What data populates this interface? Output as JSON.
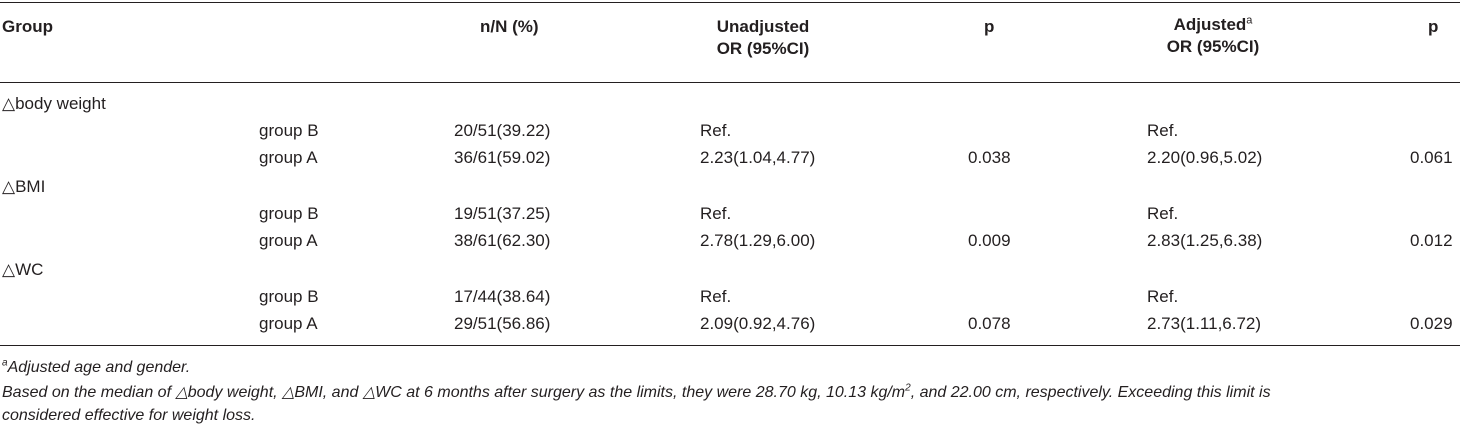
{
  "headers": {
    "group": "Group",
    "nn": "n/N (%)",
    "unadj_line1": "Unadjusted",
    "unadj_line2": "OR (95%CI)",
    "p1": "p",
    "adj_line1": "Adjusted",
    "adj_sup": "a",
    "adj_line2": "OR (95%CI)",
    "p2": "p"
  },
  "sections": [
    {
      "label": "△body weight",
      "rows": [
        {
          "group": "group B",
          "nn": "20/51(39.22)",
          "unadj": "Ref.",
          "p1": "",
          "adj": "Ref.",
          "p2": ""
        },
        {
          "group": "group A",
          "nn": "36/61(59.02)",
          "unadj": "2.23(1.04,4.77)",
          "p1": "0.038",
          "adj": "2.20(0.96,5.02)",
          "p2": "0.061"
        }
      ]
    },
    {
      "label": "△BMI",
      "rows": [
        {
          "group": "group B",
          "nn": "19/51(37.25)",
          "unadj": "Ref.",
          "p1": "",
          "adj": "Ref.",
          "p2": ""
        },
        {
          "group": "group A",
          "nn": "38/61(62.30)",
          "unadj": "2.78(1.29,6.00)",
          "p1": "0.009",
          "adj": "2.83(1.25,6.38)",
          "p2": "0.012"
        }
      ]
    },
    {
      "label": "△WC",
      "rows": [
        {
          "group": "group B",
          "nn": "17/44(38.64)",
          "unadj": "Ref.",
          "p1": "",
          "adj": "Ref.",
          "p2": ""
        },
        {
          "group": "group A",
          "nn": "29/51(56.86)",
          "unadj": "2.09(0.92,4.76)",
          "p1": "0.078",
          "adj": "2.73(1.11,6.72)",
          "p2": "0.029"
        }
      ]
    }
  ],
  "footnotes": {
    "a_sup": "a",
    "a_text": "Adjusted age and gender.",
    "note_part1": "Based on the median of △body weight, △BMI, and △WC at 6 months after surgery as the limits, they were 28.70 kg, 10.13 kg/m",
    "note_sup": "2",
    "note_part2": ", and 22.00 cm, respectively. Exceeding this limit is",
    "note_line2": "considered effective for weight loss."
  }
}
